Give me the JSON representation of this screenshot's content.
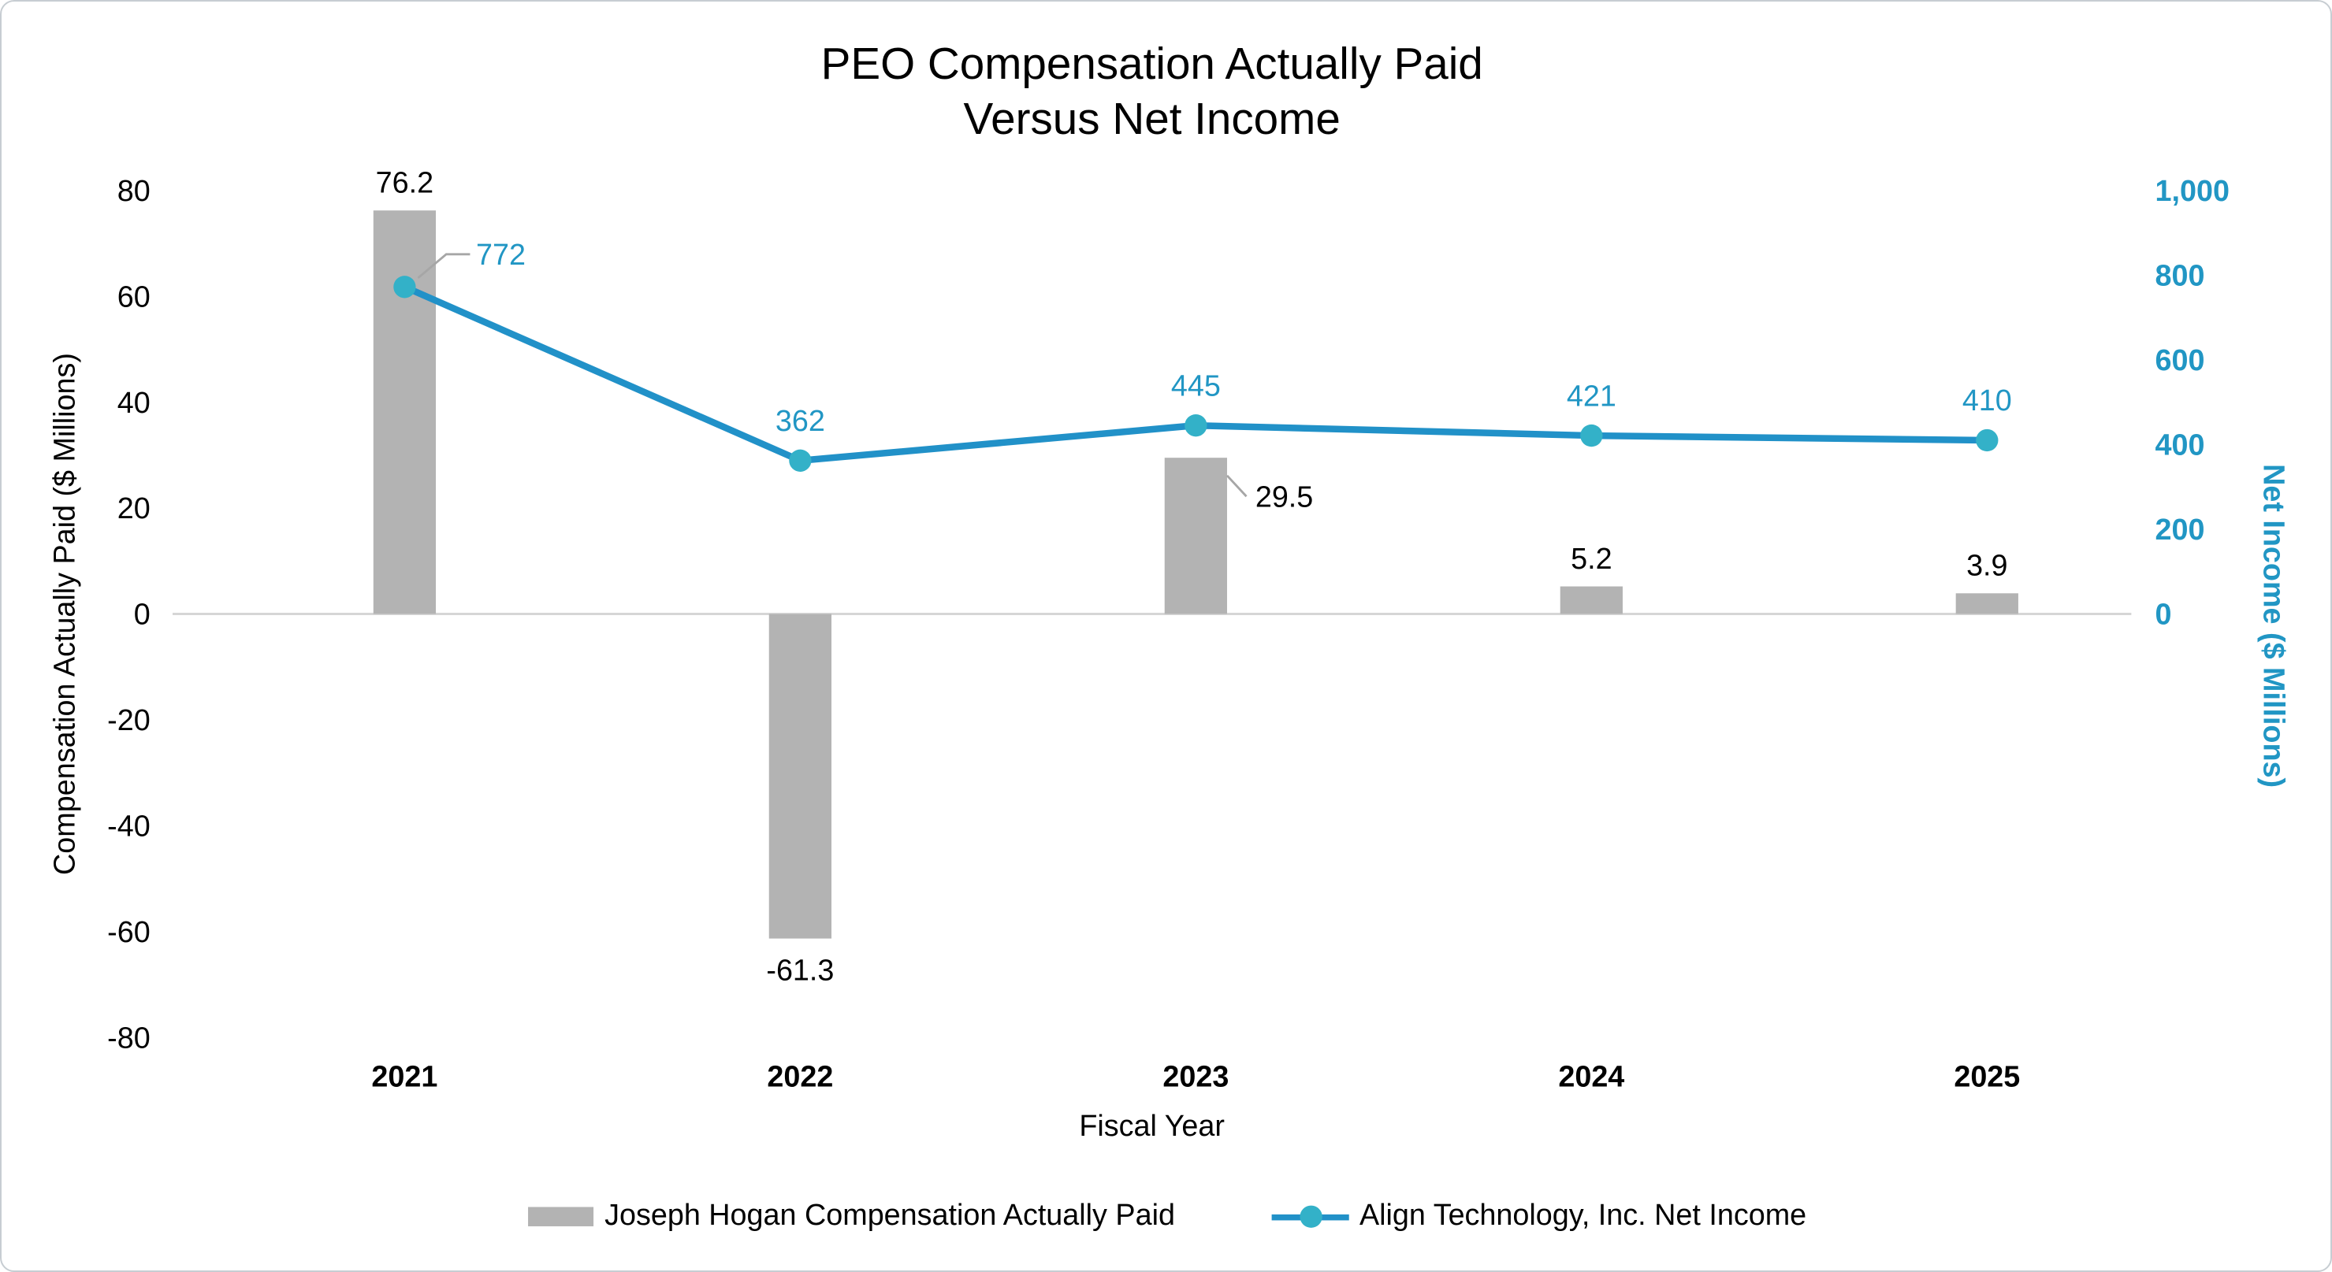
{
  "chart_data": {
    "type": "combo-bar-line",
    "title_lines": [
      "PEO Compensation Actually Paid",
      "Versus Net Income"
    ],
    "categories": [
      "2021",
      "2022",
      "2023",
      "2024",
      "2025"
    ],
    "series": [
      {
        "name": "Joseph Hogan Compensation Actually Paid",
        "type": "bar",
        "axis": "left",
        "color": "#b3b3b3",
        "values": [
          76.2,
          -61.3,
          29.5,
          5.2,
          3.9
        ],
        "labels": [
          "76.2",
          "-61.3",
          "29.5",
          "5.2",
          "3.9"
        ],
        "label_modes": [
          "above",
          "below",
          "leader-right",
          "above",
          "above"
        ]
      },
      {
        "name": "Align Technology, Inc. Net Income",
        "type": "line",
        "axis": "right",
        "color": "#2191c8",
        "marker_color": "#33b1c8",
        "values": [
          772,
          362,
          445,
          421,
          410
        ],
        "labels": [
          "772",
          "362",
          "445",
          "421",
          "410"
        ],
        "label_modes": [
          "leader",
          "above",
          "above",
          "above",
          "above"
        ]
      }
    ],
    "xlabel": "Fiscal Year",
    "left_axis": {
      "title": "Compensation Actually Paid ($ Millions)",
      "min": -80,
      "max": 80,
      "ticks": [
        80,
        60,
        40,
        20,
        0,
        -20,
        -40,
        -60,
        -80
      ],
      "tick_labels": [
        "80",
        "60",
        "40",
        "20",
        "0",
        "-20",
        "-40",
        "-60",
        "-80"
      ]
    },
    "right_axis": {
      "title": "Net Income ($ Millions)",
      "min": 0,
      "max": 1000,
      "ticks": [
        1000,
        800,
        600,
        400,
        200,
        0
      ],
      "tick_labels": [
        "1,000",
        "800",
        "600",
        "400",
        "200",
        "0"
      ]
    },
    "legend_position": "bottom",
    "grid": false,
    "colors": {
      "bar": "#b3b3b3",
      "line": "#2191c8",
      "marker": "#33b1c8",
      "line_text": "#2196c4",
      "leader": "#a6a6a6",
      "axis_line": "#d6d6d6",
      "text": "#000000"
    }
  }
}
